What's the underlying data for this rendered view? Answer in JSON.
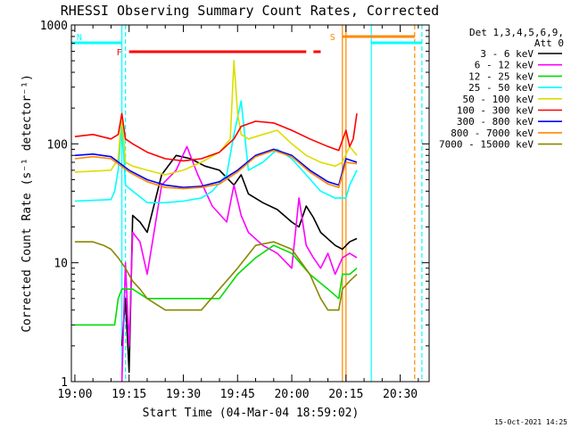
{
  "chart_data": {
    "type": "line",
    "title": "RHESSI Observing Summary Count Rates, Corrected",
    "xlabel": "Start Time (04-Mar-04 18:59:02)",
    "ylabel": "Corrected Count Rate (s⁻¹ detector⁻¹)",
    "y_scale": "log",
    "ylim": [
      1,
      1000
    ],
    "xlim": [
      "18:59:02",
      "20:38:00"
    ],
    "x_ticks": [
      "19:00",
      "19:15",
      "19:30",
      "19:45",
      "20:00",
      "20:15",
      "20:30"
    ],
    "y_ticks": [
      "1",
      "10",
      "100",
      "1000"
    ],
    "legend": {
      "header": [
        "Det 1,3,4,5,6,9,",
        "Att 0"
      ],
      "position": "right, outside plot"
    },
    "series": [
      {
        "name": "3 - 6 keV",
        "color": "#000000",
        "t": [
          "19:13",
          "19:14",
          "19:15",
          "19:16",
          "19:18",
          "19:20",
          "19:24",
          "19:28",
          "19:32",
          "19:36",
          "19:40",
          "19:44",
          "19:46",
          "19:48",
          "19:52",
          "19:56",
          "20:00",
          "20:02",
          "20:04",
          "20:06",
          "20:08",
          "20:12",
          "20:14",
          "20:16",
          "20:18"
        ],
        "y": [
          2,
          5,
          1.2,
          25,
          22,
          18,
          55,
          80,
          75,
          65,
          60,
          45,
          55,
          38,
          32,
          28,
          22,
          20,
          30,
          24,
          18,
          14,
          13,
          15,
          16
        ]
      },
      {
        "name": "6 - 12 keV",
        "color": "#ff00ff",
        "t": [
          "19:13",
          "19:14",
          "19:15",
          "19:16",
          "19:18",
          "19:20",
          "19:24",
          "19:28",
          "19:31",
          "19:34",
          "19:38",
          "19:42",
          "19:44",
          "19:46",
          "19:48",
          "19:52",
          "19:56",
          "20:00",
          "20:02",
          "20:04",
          "20:06",
          "20:08",
          "20:10",
          "20:12",
          "20:14",
          "20:16",
          "20:18"
        ],
        "y": [
          1,
          10,
          2,
          18,
          15,
          8,
          45,
          60,
          95,
          55,
          30,
          22,
          45,
          25,
          18,
          14,
          12,
          9,
          35,
          14,
          11,
          9,
          12,
          8,
          11,
          12,
          11
        ]
      },
      {
        "name": "12 - 25 keV",
        "color": "#00dd00",
        "t": [
          "19:00",
          "19:05",
          "19:11",
          "19:12",
          "19:13",
          "19:14",
          "19:16",
          "19:20",
          "19:25",
          "19:30",
          "19:35",
          "19:40",
          "19:45",
          "19:50",
          "19:55",
          "20:00",
          "20:05",
          "20:10",
          "20:13",
          "20:14",
          "20:16",
          "20:18"
        ],
        "y": [
          3,
          3,
          3,
          5,
          6,
          6,
          6,
          5,
          5,
          5,
          5,
          5,
          8,
          11,
          14,
          12,
          8,
          6,
          5,
          8,
          8,
          9
        ]
      },
      {
        "name": "25 - 50 keV",
        "color": "#00ffff",
        "t": [
          "19:00",
          "19:10",
          "19:11",
          "19:12",
          "19:13",
          "19:14",
          "19:16",
          "19:20",
          "19:25",
          "19:30",
          "19:35",
          "19:38",
          "19:42",
          "19:44",
          "19:46",
          "19:48",
          "19:52",
          "19:56",
          "20:00",
          "20:04",
          "20:08",
          "20:12",
          "20:15",
          "20:16",
          "20:18"
        ],
        "y": [
          33,
          34,
          40,
          60,
          150,
          45,
          40,
          32,
          32,
          33,
          35,
          40,
          55,
          120,
          230,
          60,
          70,
          90,
          75,
          55,
          40,
          35,
          35,
          45,
          60
        ]
      },
      {
        "name": "50 - 100 keV",
        "color": "#dddd00",
        "t": [
          "19:00",
          "19:10",
          "19:12",
          "19:13",
          "19:14",
          "19:16",
          "19:20",
          "19:25",
          "19:30",
          "19:35",
          "19:40",
          "19:43",
          "19:44",
          "19:45",
          "19:46",
          "19:48",
          "19:52",
          "19:56",
          "20:00",
          "20:04",
          "20:08",
          "20:12",
          "20:14",
          "20:16",
          "20:18"
        ],
        "y": [
          58,
          60,
          75,
          180,
          70,
          65,
          60,
          55,
          60,
          70,
          85,
          110,
          500,
          180,
          120,
          110,
          120,
          130,
          100,
          80,
          70,
          65,
          70,
          95,
          80
        ]
      },
      {
        "name": "100 - 300 keV",
        "color": "#ff0000",
        "t": [
          "19:00",
          "19:05",
          "19:10",
          "19:12",
          "19:13",
          "19:14",
          "19:16",
          "19:20",
          "19:25",
          "19:30",
          "19:35",
          "19:40",
          "19:44",
          "19:46",
          "19:50",
          "19:55",
          "20:00",
          "20:05",
          "20:10",
          "20:13",
          "20:15",
          "20:16",
          "20:17",
          "20:18"
        ],
        "y": [
          115,
          120,
          110,
          120,
          180,
          110,
          100,
          85,
          75,
          72,
          75,
          85,
          110,
          140,
          155,
          150,
          130,
          110,
          95,
          88,
          130,
          95,
          110,
          180
        ]
      },
      {
        "name": "300 - 800 keV",
        "color": "#0000ff",
        "t": [
          "19:00",
          "19:05",
          "19:10",
          "19:15",
          "19:20",
          "19:25",
          "19:30",
          "19:35",
          "19:40",
          "19:45",
          "19:50",
          "19:55",
          "20:00",
          "20:05",
          "20:10",
          "20:13",
          "20:15",
          "20:18"
        ],
        "y": [
          80,
          82,
          78,
          60,
          50,
          45,
          43,
          44,
          48,
          60,
          80,
          90,
          80,
          60,
          48,
          45,
          75,
          70
        ]
      },
      {
        "name": "800 - 7000 keV",
        "color": "#ff8800",
        "t": [
          "19:00",
          "19:05",
          "19:10",
          "19:15",
          "19:20",
          "19:25",
          "19:30",
          "19:35",
          "19:40",
          "19:45",
          "19:50",
          "19:55",
          "20:00",
          "20:05",
          "20:10",
          "20:13",
          "20:15",
          "20:18"
        ],
        "y": [
          75,
          78,
          75,
          58,
          48,
          43,
          42,
          43,
          46,
          58,
          78,
          88,
          78,
          58,
          46,
          43,
          70,
          68
        ]
      },
      {
        "name": "7000 - 15000 keV",
        "color": "#888800",
        "t": [
          "19:00",
          "19:05",
          "19:08",
          "19:10",
          "19:12",
          "19:14",
          "19:16",
          "19:18",
          "19:20",
          "19:25",
          "19:30",
          "19:35",
          "19:40",
          "19:45",
          "19:50",
          "19:55",
          "20:00",
          "20:05",
          "20:08",
          "20:10",
          "20:13",
          "20:14",
          "20:16",
          "20:18"
        ],
        "y": [
          15,
          15,
          14,
          13,
          11,
          9,
          7,
          6,
          5,
          4,
          4,
          4,
          6,
          9,
          14,
          15,
          13,
          8,
          5,
          4,
          4,
          6,
          7,
          8
        ]
      }
    ],
    "annotations": {
      "flare_bar": {
        "label": "F",
        "color": "#ff0000",
        "segments": [
          [
            "19:15",
            "20:04"
          ],
          [
            "20:06",
            "20:08"
          ]
        ]
      },
      "night_bars": [
        {
          "label": "N",
          "color": "#00ffff",
          "segments": [
            [
              "18:59",
              "19:13"
            ],
            [
              "20:22",
              "20:36"
            ]
          ]
        }
      ],
      "saa_bar": {
        "label": "S",
        "color": "#ff8800",
        "segments": [
          [
            "20:14",
            "20:34"
          ]
        ]
      },
      "vlines": [
        {
          "t": "19:13",
          "color": "#00ffff",
          "style": "solid"
        },
        {
          "t": "19:14",
          "color": "#00ffff",
          "style": "dashed"
        },
        {
          "t": "20:14",
          "color": "#ff8800",
          "style": "solid"
        },
        {
          "t": "20:15",
          "color": "#ff8800",
          "style": "solid"
        },
        {
          "t": "20:22",
          "color": "#00ffff",
          "style": "solid"
        },
        {
          "t": "20:34",
          "color": "#ff8800",
          "style": "dashed"
        },
        {
          "t": "20:36",
          "color": "#00ffff",
          "style": "dashed"
        }
      ]
    }
  },
  "footer": {
    "timestamp": "15-Oct-2021 14:25"
  }
}
